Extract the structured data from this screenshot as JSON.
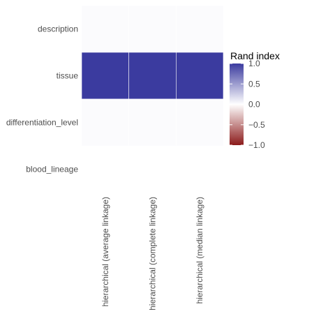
{
  "chart_data": {
    "type": "heatmap",
    "title": "",
    "xlabel": "",
    "ylabel": "",
    "x_categories": [
      "hierarchical (average linkage)",
      "hierarchical (complete linkage)",
      "hierarchical (median linkage)"
    ],
    "y_categories": [
      "description",
      "tissue",
      "differentiation_level",
      "blood_lineage"
    ],
    "values": [
      [
        0.02,
        0.02,
        0.02
      ],
      [
        1.0,
        1.0,
        1.0
      ],
      [
        0.02,
        0.02,
        0.02
      ],
      [
        0.0,
        0.0,
        0.0
      ]
    ],
    "legend": {
      "title": "Rand index",
      "ticks": [
        1.0,
        0.5,
        0.0,
        -0.5,
        -1.0
      ],
      "tick_labels": [
        "1.0",
        "0.5",
        "0.0",
        "−0.5",
        "−1.0"
      ],
      "range": [
        -1.0,
        1.0
      ],
      "position": "right"
    },
    "colors": {
      "high": "#3b3b9f",
      "mid": "#ffffff",
      "low": "#8b1a1a",
      "panel_bg": "#ebebeb",
      "grid": "#ffffff"
    }
  }
}
